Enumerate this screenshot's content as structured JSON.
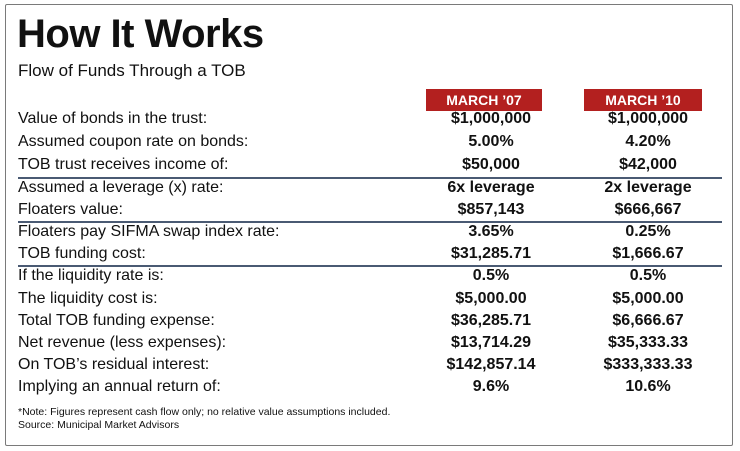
{
  "title": "How It Works",
  "subtitle": "Flow of Funds Through a TOB",
  "columns": [
    "MARCH ’07",
    "MARCH ’10"
  ],
  "accent_color": "#b3201f",
  "rows": [
    {
      "label": "Value of bonds in the trust:",
      "v1": "$1,000,000",
      "v2": "$1,000,000"
    },
    {
      "label": "Assumed coupon rate on bonds:",
      "v1": "5.00%",
      "v2": "4.20%"
    },
    {
      "label": "TOB trust receives income of:",
      "v1": "$50,000",
      "v2": "$42,000"
    },
    {
      "label": "Assumed a leverage (x) rate:",
      "v1": "6x leverage",
      "v2": "2x leverage"
    },
    {
      "label": "Floaters value:",
      "v1": "$857,143",
      "v2": "$666,667"
    },
    {
      "label": "Floaters pay SIFMA swap index rate:",
      "v1": "3.65%",
      "v2": "0.25%"
    },
    {
      "label": "TOB funding cost:",
      "v1": "$31,285.71",
      "v2": "$1,666.67"
    },
    {
      "label": "If the liquidity rate is:",
      "v1": "0.5%",
      "v2": "0.5%"
    },
    {
      "label": "The liquidity cost is:",
      "v1": "$5,000.00",
      "v2": "$5,000.00"
    },
    {
      "label": "Total TOB funding expense:",
      "v1": "$36,285.71",
      "v2": "$6,666.67"
    },
    {
      "label": "Net revenue (less expenses):",
      "v1": "$13,714.29",
      "v2": "$35,333.33"
    },
    {
      "label": "On TOB’s residual interest:",
      "v1": "$142,857.14",
      "v2": "$333,333.33"
    },
    {
      "label": "Implying an annual return of:",
      "v1": "9.6%",
      "v2": "10.6%"
    }
  ],
  "footnote": "*Note: Figures represent cash flow only; no relative value assumptions included.",
  "source": "Source: Municipal Market Advisors"
}
